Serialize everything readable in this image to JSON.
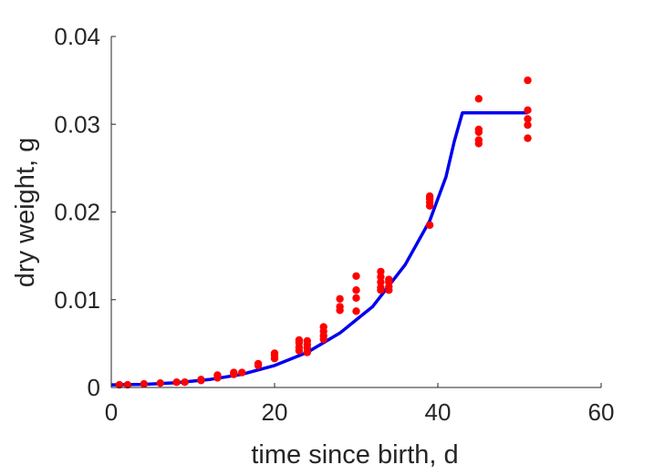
{
  "chart_data": {
    "type": "scatter",
    "title": "",
    "xlabel": "time since birth, d",
    "ylabel": "dry weight, g",
    "xlim": [
      0,
      60
    ],
    "ylim": [
      0,
      0.04
    ],
    "xticks": [
      0,
      20,
      40,
      60
    ],
    "xtick_labels": [
      "0",
      "20",
      "40",
      "60"
    ],
    "yticks": [
      0,
      0.01,
      0.02,
      0.03,
      0.04
    ],
    "ytick_labels": [
      "0",
      "0.01",
      "0.02",
      "0.03",
      "0.04"
    ],
    "grid": false,
    "legend": "none",
    "series": [
      {
        "kind": "scatter",
        "color": "#ff0000",
        "points": [
          [
            1,
            0.0003
          ],
          [
            2,
            0.0003
          ],
          [
            4,
            0.0004
          ],
          [
            6,
            0.0005
          ],
          [
            8,
            0.0006
          ],
          [
            9,
            0.0006
          ],
          [
            11,
            0.0008
          ],
          [
            11,
            0.0009
          ],
          [
            13,
            0.0011
          ],
          [
            13,
            0.0014
          ],
          [
            15,
            0.0015
          ],
          [
            15,
            0.0017
          ],
          [
            16,
            0.0017
          ],
          [
            18,
            0.0025
          ],
          [
            18,
            0.0027
          ],
          [
            20,
            0.0033
          ],
          [
            20,
            0.0037
          ],
          [
            20,
            0.0039
          ],
          [
            23,
            0.0042
          ],
          [
            23,
            0.0046
          ],
          [
            23,
            0.0051
          ],
          [
            23,
            0.0054
          ],
          [
            24,
            0.004
          ],
          [
            24,
            0.0045
          ],
          [
            24,
            0.0049
          ],
          [
            24,
            0.0053
          ],
          [
            26,
            0.0055
          ],
          [
            26,
            0.0059
          ],
          [
            26,
            0.0064
          ],
          [
            26,
            0.0069
          ],
          [
            28,
            0.0088
          ],
          [
            28,
            0.0092
          ],
          [
            28,
            0.0101
          ],
          [
            30,
            0.0087
          ],
          [
            30,
            0.0102
          ],
          [
            30,
            0.0111
          ],
          [
            30,
            0.0127
          ],
          [
            33,
            0.0111
          ],
          [
            33,
            0.0114
          ],
          [
            33,
            0.012
          ],
          [
            33,
            0.0126
          ],
          [
            33,
            0.0132
          ],
          [
            34,
            0.0111
          ],
          [
            34,
            0.0115
          ],
          [
            34,
            0.012
          ],
          [
            34,
            0.0123
          ],
          [
            39,
            0.0185
          ],
          [
            39,
            0.0207
          ],
          [
            39,
            0.0211
          ],
          [
            39,
            0.0215
          ],
          [
            39,
            0.0218
          ],
          [
            45,
            0.0278
          ],
          [
            45,
            0.0282
          ],
          [
            45,
            0.0291
          ],
          [
            45,
            0.0294
          ],
          [
            45,
            0.0329
          ],
          [
            51,
            0.0284
          ],
          [
            51,
            0.0299
          ],
          [
            51,
            0.0306
          ],
          [
            51,
            0.0316
          ],
          [
            51,
            0.035
          ]
        ]
      },
      {
        "kind": "line",
        "color": "#0000ee",
        "points": [
          [
            0,
            0.0003
          ],
          [
            4,
            0.00035
          ],
          [
            8,
            0.00055
          ],
          [
            12,
            0.0009
          ],
          [
            16,
            0.0015
          ],
          [
            20,
            0.0025
          ],
          [
            24,
            0.004
          ],
          [
            28,
            0.0062
          ],
          [
            32,
            0.0092
          ],
          [
            36,
            0.014
          ],
          [
            39,
            0.019
          ],
          [
            41,
            0.024
          ],
          [
            42,
            0.028
          ],
          [
            43,
            0.0313
          ],
          [
            51,
            0.0313
          ]
        ]
      }
    ]
  }
}
